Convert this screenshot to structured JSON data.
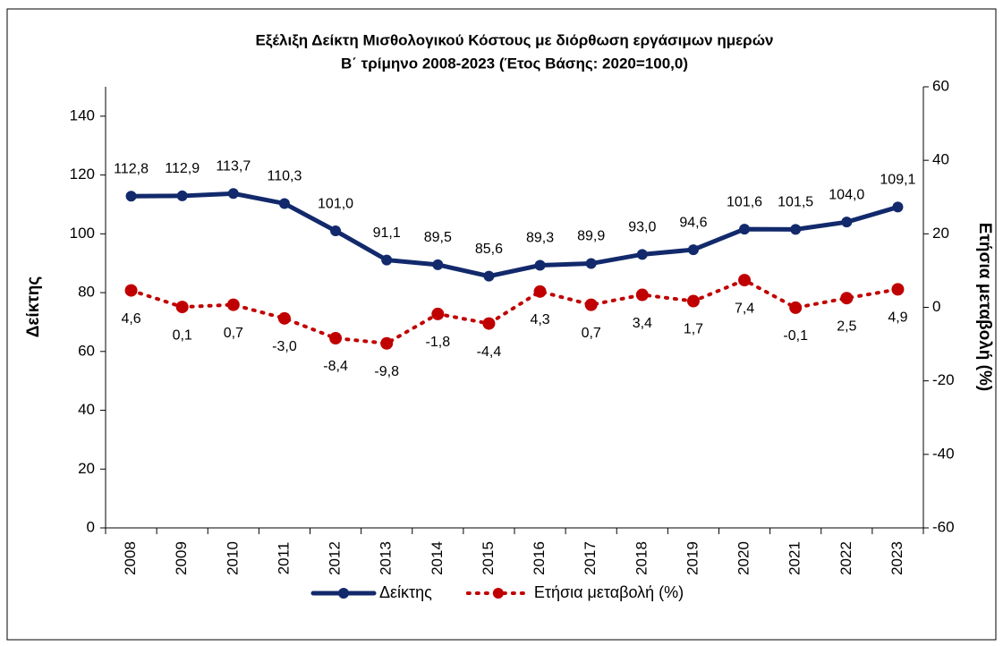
{
  "chart_data": {
    "type": "line",
    "title": "Εξέλιξη  Δείκτη Μισθολογικού Κόστους με διόρθωση  εργάσιμων ημερών",
    "subtitle": "Β΄ τρίμηνο 2008-2023  (Έτος Βάσης: 2020=100,0)",
    "y_label": "Δείκτης",
    "y2_label": "Ετήσια μεταβολή (%)",
    "categories": [
      "2008",
      "2009",
      "2010",
      "2011",
      "2012",
      "2013",
      "2014",
      "2015",
      "2016",
      "2017",
      "2018",
      "2019",
      "2020",
      "2021",
      "2022",
      "2023"
    ],
    "series": [
      {
        "name": "Δείκτης",
        "color": "#12296b",
        "line_style": "solid",
        "values": [
          112.8,
          112.9,
          113.7,
          110.3,
          101.0,
          91.1,
          89.5,
          85.6,
          89.3,
          89.9,
          93.0,
          94.6,
          101.6,
          101.5,
          104.0,
          109.1
        ],
        "value_labels": [
          "112,8",
          "112,9",
          "113,7",
          "110,3",
          "101,0",
          "91,1",
          "89,5",
          "85,6",
          "89,3",
          "89,9",
          "93,0",
          "94,6",
          "101,6",
          "101,5",
          "104,0",
          "109,1"
        ]
      },
      {
        "name": "Ετήσια μεταβολή (%)",
        "color": "#c00000",
        "line_style": "dotted",
        "axis": "y2",
        "values": [
          4.6,
          0.1,
          0.7,
          -3.0,
          -8.4,
          -9.8,
          -1.8,
          -4.4,
          4.3,
          0.7,
          3.4,
          1.7,
          7.4,
          -0.1,
          2.5,
          4.9
        ],
        "value_labels": [
          "4,6",
          "0,1",
          "0,7",
          "-3,0",
          "-8,4",
          "-9,8",
          "-1,8",
          "-4,4",
          "4,3",
          "0,7",
          "3,4",
          "1,7",
          "7,4",
          "-0,1",
          "2,5",
          "4,9"
        ]
      }
    ],
    "ylim": [
      0,
      150
    ],
    "yticks": [
      0,
      20,
      40,
      60,
      80,
      100,
      120,
      140
    ],
    "y2lim": [
      -60,
      60
    ],
    "y2ticks": [
      -60,
      -40,
      -20,
      0,
      20,
      40,
      60
    ],
    "legend": "bottom"
  }
}
